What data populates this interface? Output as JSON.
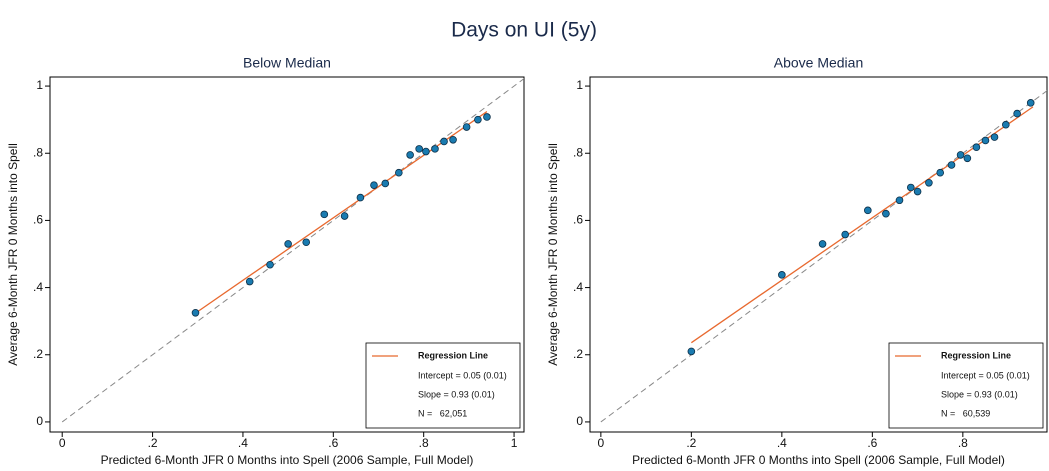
{
  "title": "Days on UI (5y)",
  "chart_data": [
    {
      "type": "scatter",
      "title": "Below Median",
      "x_label": "Predicted 6-Month JFR 0 Months into Spell (2006 Sample, Full Model)",
      "y_label": "Average 6-Month JFR 0 Months into Spell",
      "x": [
        0.295,
        0.415,
        0.46,
        0.5,
        0.54,
        0.58,
        0.625,
        0.66,
        0.69,
        0.715,
        0.745,
        0.77,
        0.79,
        0.805,
        0.825,
        0.845,
        0.865,
        0.895,
        0.92,
        0.94
      ],
      "values": [
        0.325,
        0.418,
        0.468,
        0.53,
        0.535,
        0.618,
        0.613,
        0.668,
        0.705,
        0.71,
        0.742,
        0.795,
        0.813,
        0.805,
        0.813,
        0.835,
        0.84,
        0.878,
        0.9,
        0.908
      ],
      "color": "#1a7bb0",
      "regression": {
        "name": "Regression Line",
        "x": [
          0.295,
          0.94
        ],
        "values": [
          0.324,
          0.924
        ],
        "color": "#e8692f"
      },
      "reference_line": {
        "x": [
          0,
          1.03
        ],
        "values": [
          0,
          1.03
        ],
        "color": "#888888"
      },
      "legend": {
        "position": "lower right",
        "notes": [
          "Intercept = 0.05 (0.01)",
          "Slope = 0.93 (0.01)",
          "N =   62,051"
        ]
      },
      "xlim": [
        -0.027,
        1.022
      ],
      "ylim": [
        -0.03,
        1.027
      ],
      "xticks": [
        0,
        {
          "value": 0.2,
          "label": ".2"
        },
        {
          "value": 0.4,
          "label": ".4"
        },
        {
          "value": 0.6,
          "label": ".6"
        },
        {
          "value": 0.8,
          "label": ".8"
        },
        1
      ],
      "yticks": [
        0,
        {
          "value": 0.2,
          "label": ".2"
        },
        {
          "value": 0.4,
          "label": ".4"
        },
        {
          "value": 0.6,
          "label": ".6"
        },
        {
          "value": 0.8,
          "label": ".8"
        },
        1
      ],
      "grid": false
    },
    {
      "type": "scatter",
      "title": "Above Median",
      "x_label": "Predicted 6-Month JFR 0 Months into Spell (2006 Sample, Full Model)",
      "y_label": "Average 6-Month JFR 0 Months into Spell",
      "x": [
        0.2,
        0.4,
        0.49,
        0.54,
        0.59,
        0.63,
        0.66,
        0.685,
        0.7,
        0.725,
        0.75,
        0.775,
        0.795,
        0.81,
        0.83,
        0.85,
        0.87,
        0.895,
        0.92,
        0.95
      ],
      "values": [
        0.21,
        0.438,
        0.53,
        0.558,
        0.63,
        0.62,
        0.66,
        0.698,
        0.686,
        0.712,
        0.742,
        0.765,
        0.795,
        0.785,
        0.818,
        0.838,
        0.848,
        0.885,
        0.918,
        0.95
      ],
      "color": "#1a7bb0",
      "regression": {
        "name": "Regression Line",
        "x": [
          0.2,
          0.955
        ],
        "values": [
          0.236,
          0.938
        ],
        "color": "#e8692f"
      },
      "reference_line": {
        "x": [
          0,
          1.03
        ],
        "values": [
          0,
          1.03
        ],
        "color": "#888888"
      },
      "legend": {
        "position": "lower right",
        "notes": [
          "Intercept = 0.05 (0.01)",
          "Slope = 0.93 (0.01)",
          "N =   60,539"
        ]
      },
      "xlim": [
        -0.024,
        0.986
      ],
      "ylim": [
        -0.03,
        1.027
      ],
      "xticks": [
        0,
        {
          "value": 0.2,
          "label": ".2"
        },
        {
          "value": 0.4,
          "label": ".4"
        },
        {
          "value": 0.6,
          "label": ".6"
        },
        {
          "value": 0.8,
          "label": ".8"
        }
      ],
      "yticks": [
        0,
        {
          "value": 0.2,
          "label": ".2"
        },
        {
          "value": 0.4,
          "label": ".4"
        },
        {
          "value": 0.6,
          "label": ".6"
        },
        {
          "value": 0.8,
          "label": ".8"
        },
        1
      ],
      "grid": false
    }
  ]
}
